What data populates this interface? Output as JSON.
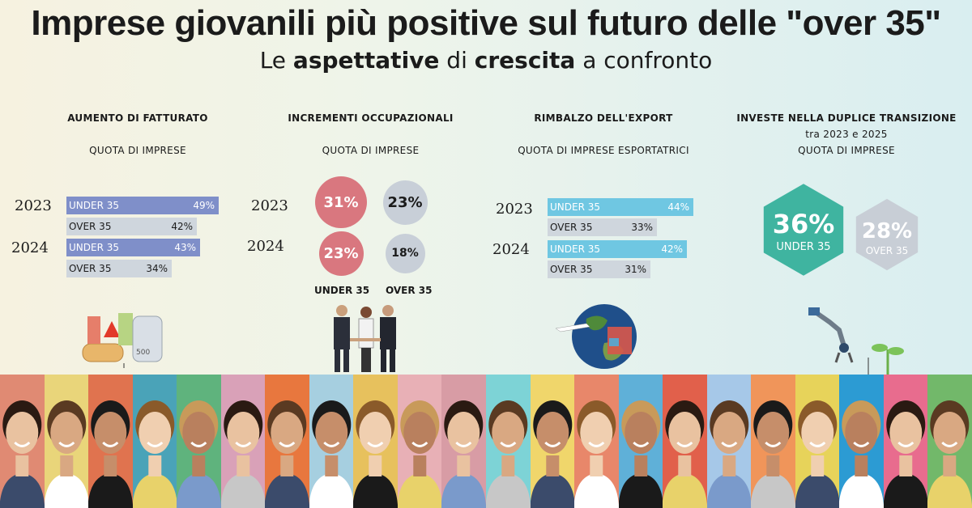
{
  "header": {
    "title": "Imprese giovanili più positive sul futuro delle \"over 35\"",
    "subtitle_parts": [
      "Le ",
      "aspettative",
      " di ",
      "crescita",
      " a confronto"
    ]
  },
  "colors": {
    "under_purple": "#7f8fc9",
    "over_gray": "#cfd6dd",
    "under_cyan": "#6fc7e2",
    "under_red_circle": "#d9777f",
    "over_gray_circle": "#c8cfd8",
    "hex_green": "#3fb4a0",
    "hex_gray": "#c8ced6"
  },
  "panels": {
    "fatturato": {
      "title": "AUMENTO DI FATTURATO",
      "subtitle": "QUOTA DI IMPRESE",
      "icon": "banknotes-icon"
    },
    "occupazione": {
      "title": "INCREMENTI OCCUPAZIONALI",
      "subtitle": "QUOTA DI IMPRESE",
      "icon": "handshake-icon",
      "legend_under": "UNDER 35",
      "legend_over": "OVER 35"
    },
    "export": {
      "title": "RIMBALZO DELL'EXPORT",
      "subtitle": "QUOTA DI IMPRESE ESPORTATRICI",
      "icon": "globe-icon"
    },
    "transizione": {
      "title": "INVESTE NELLA DUPLICE TRANSIZIONE",
      "subtitle1": "tra 2023 e 2025",
      "subtitle2": "QUOTA DI IMPRESE",
      "icon": "robot-plant-icon"
    }
  },
  "chart_data": [
    {
      "type": "bar",
      "title": "AUMENTO DI FATTURATO",
      "categories": [
        "2023",
        "2024"
      ],
      "series": [
        {
          "name": "UNDER 35",
          "values": [
            49,
            43
          ]
        },
        {
          "name": "OVER 35",
          "values": [
            42,
            34
          ]
        }
      ],
      "labels": [
        "49%",
        "43%",
        "42%",
        "34%"
      ],
      "unit": "%"
    },
    {
      "type": "scatter",
      "title": "INCREMENTI OCCUPAZIONALI",
      "categories": [
        "2023",
        "2024"
      ],
      "series": [
        {
          "name": "UNDER 35",
          "values": [
            31,
            23
          ]
        },
        {
          "name": "OVER 35",
          "values": [
            23,
            18
          ]
        }
      ],
      "labels": [
        "31%",
        "23%",
        "23%",
        "18%"
      ],
      "unit": "%"
    },
    {
      "type": "bar",
      "title": "RIMBALZO DELL'EXPORT",
      "categories": [
        "2023",
        "2024"
      ],
      "series": [
        {
          "name": "UNDER 35",
          "values": [
            44,
            42
          ]
        },
        {
          "name": "OVER 35",
          "values": [
            33,
            31
          ]
        }
      ],
      "labels": [
        "44%",
        "42%",
        "33%",
        "31%"
      ],
      "unit": "%"
    },
    {
      "type": "bar",
      "title": "INVESTE NELLA DUPLICE TRANSIZIONE",
      "categories": [
        "UNDER 35",
        "OVER 35"
      ],
      "values": [
        36,
        28
      ],
      "labels": [
        "36%",
        "28%"
      ],
      "unit": "%"
    }
  ],
  "photo_strip": {
    "icon": "faces-strip",
    "backgrounds": [
      "#e08a73",
      "#e9d57a",
      "#e0734f",
      "#4aa3b8",
      "#5fb37d",
      "#d9a1b8",
      "#e8773e",
      "#a6cfe0",
      "#e7c15d",
      "#e8b0b6",
      "#d89ca5",
      "#7dd3d6",
      "#f0d66b",
      "#e8876a",
      "#5fb0d8",
      "#e1604b",
      "#a6c8e8",
      "#f0955a",
      "#e7d35a",
      "#2c9bd3",
      "#e86c8e",
      "#72b86a"
    ]
  }
}
